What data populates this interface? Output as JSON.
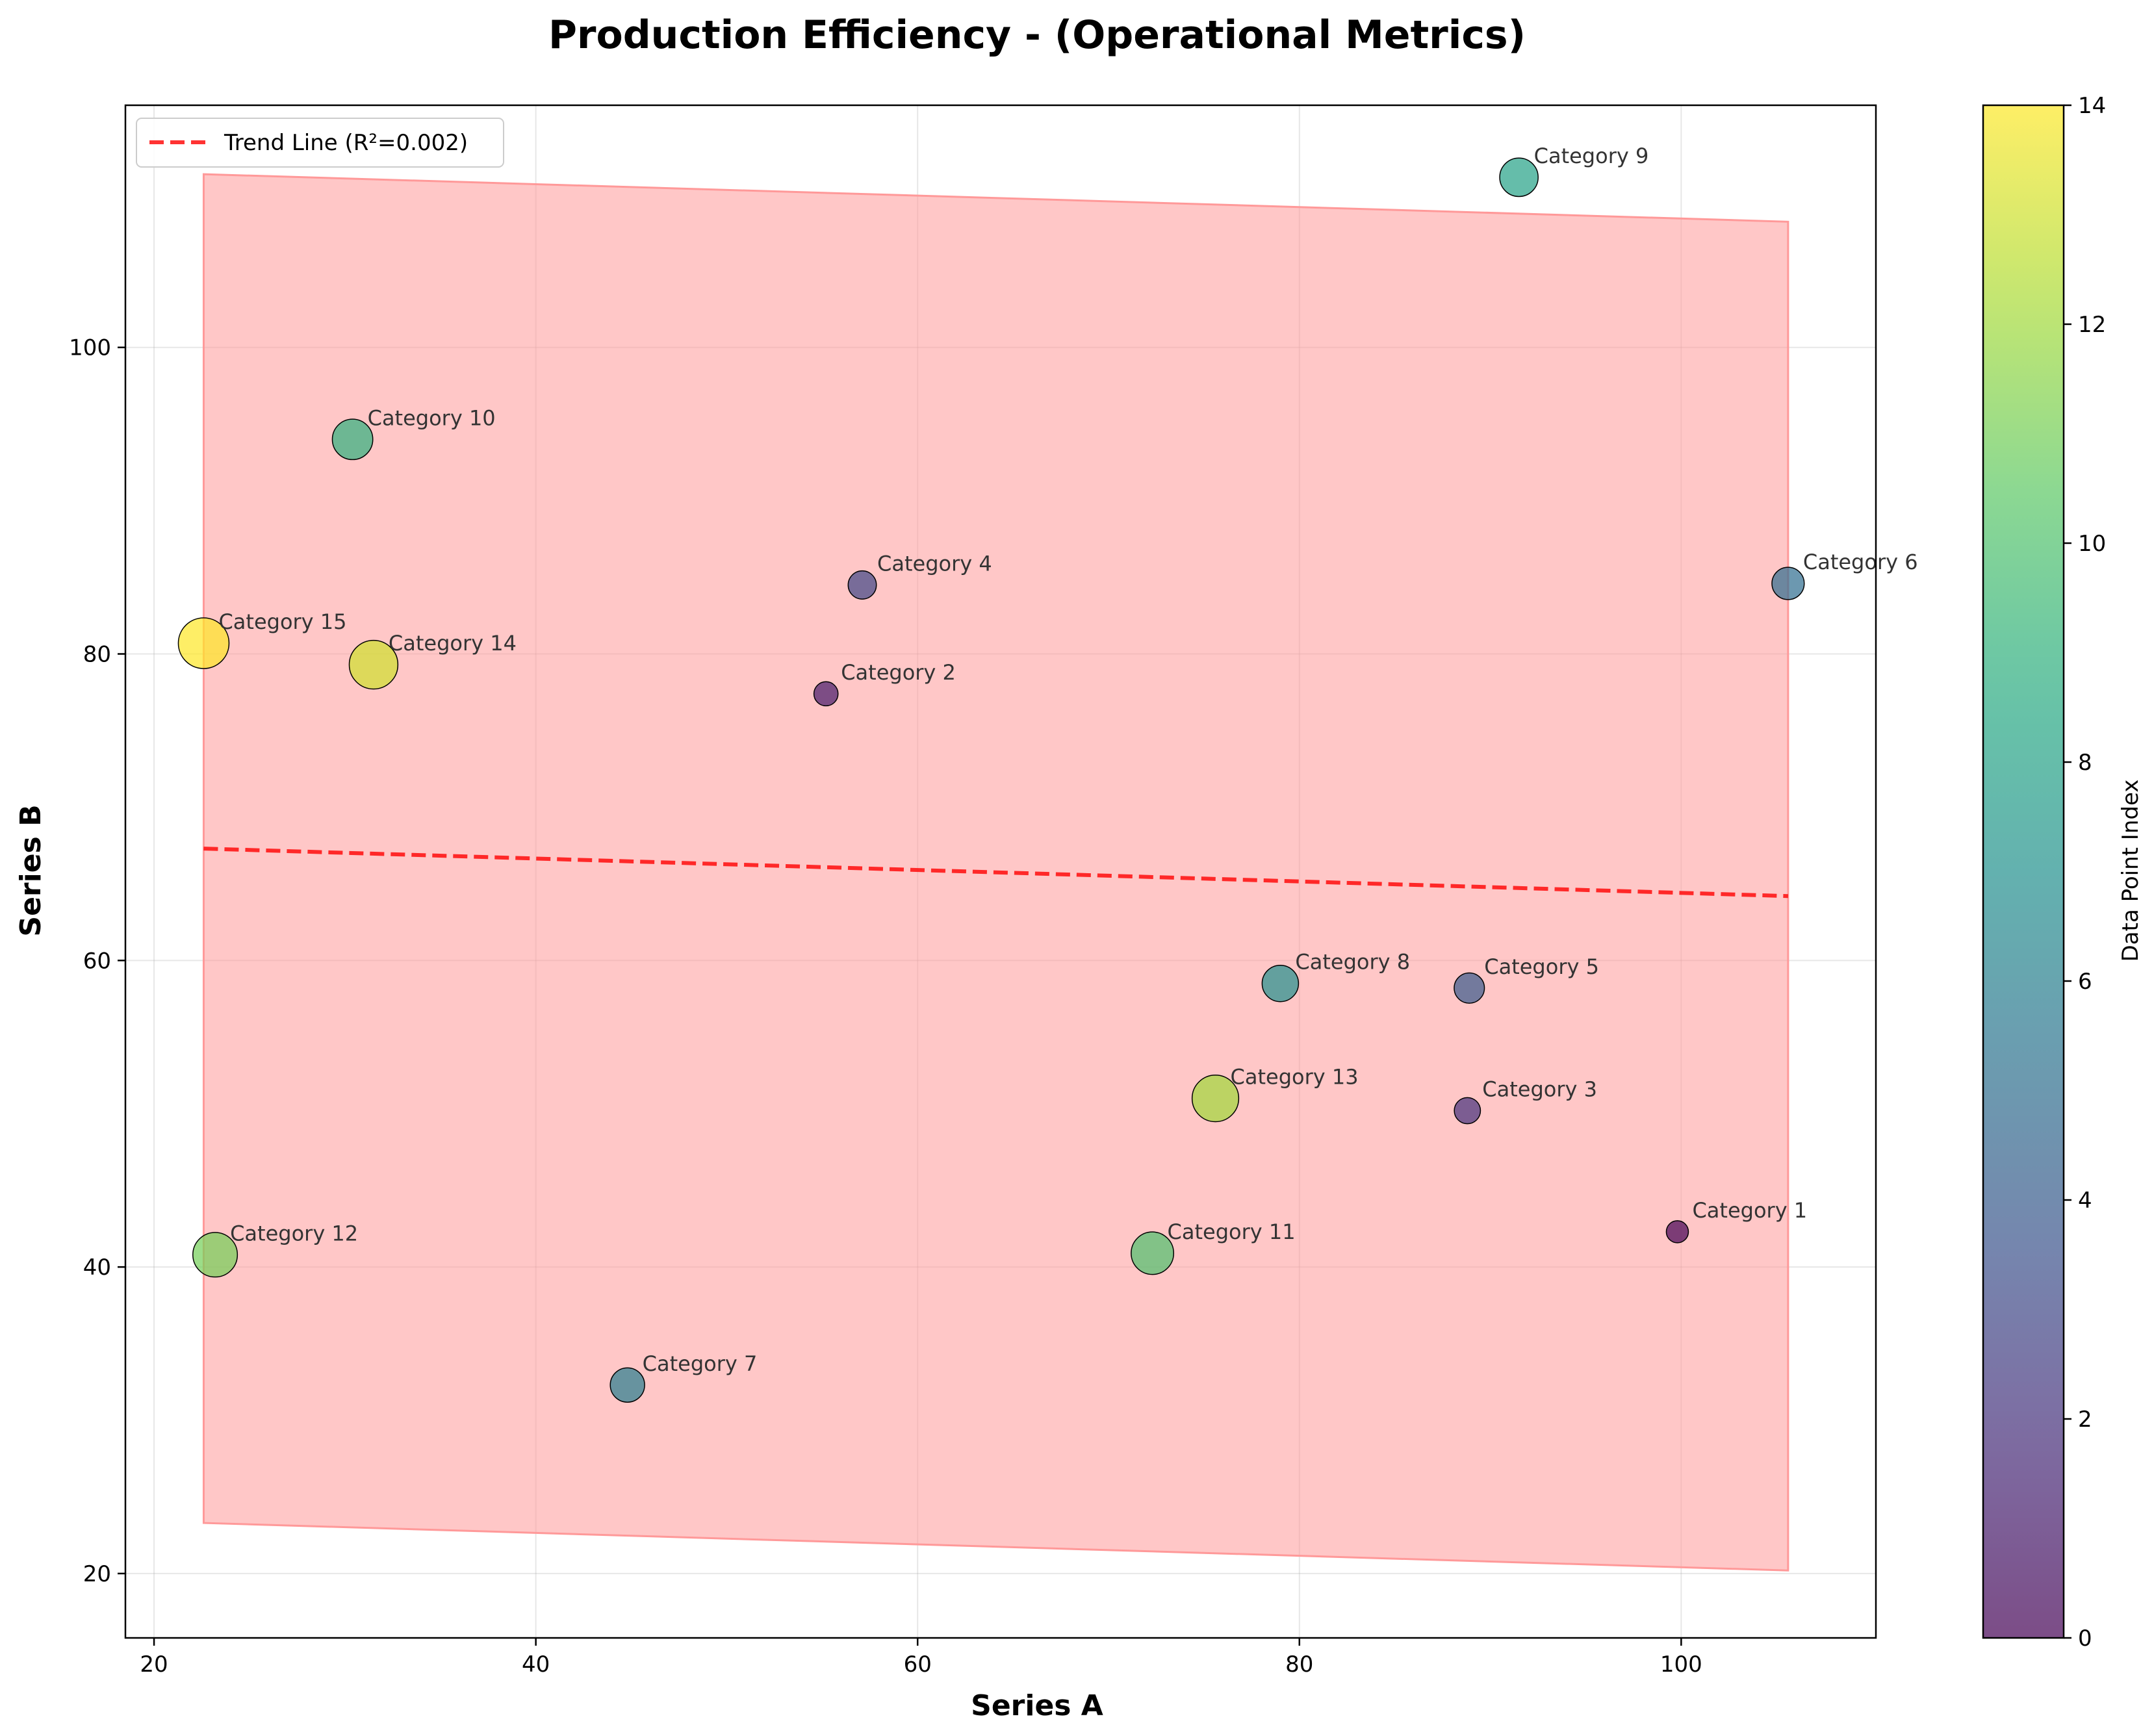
{
  "chart_data": {
    "type": "scatter",
    "title": "Production Efficiency - (Operational Metrics)",
    "xlabel": "Series A",
    "ylabel": "Series B",
    "xlim": [
      18.5,
      110.2
    ],
    "ylim": [
      15.8,
      115.8
    ],
    "x_ticks": [
      20,
      40,
      60,
      80,
      100
    ],
    "y_ticks": [
      20,
      40,
      60,
      80,
      100
    ],
    "grid": true,
    "legend": {
      "position": "top-left",
      "entries": [
        "Trend Line (R²=0.002)"
      ]
    },
    "trend_line": {
      "label": "Trend Line (R²=0.002)",
      "color": "#ff0000",
      "x_range": [
        22.6,
        105.6
      ],
      "y_start": 67.3,
      "y_end": 64.2
    },
    "confidence_band": {
      "color": "#ff9999",
      "x_range": [
        22.6,
        105.6
      ],
      "upper": [
        111.3,
        108.2
      ],
      "lower": [
        23.3,
        20.2
      ]
    },
    "colorbar": {
      "label": "Data Point Index",
      "min": 0,
      "max": 14,
      "ticks": [
        0,
        2,
        4,
        6,
        8,
        10,
        12,
        14
      ],
      "colormap": "viridis"
    },
    "points": [
      {
        "label": "Category 1",
        "x": 99.8,
        "y": 42.3,
        "index": 0
      },
      {
        "label": "Category 2",
        "x": 55.2,
        "y": 77.4,
        "index": 1
      },
      {
        "label": "Category 3",
        "x": 88.8,
        "y": 50.2,
        "index": 2
      },
      {
        "label": "Category 4",
        "x": 57.1,
        "y": 84.5,
        "index": 3
      },
      {
        "label": "Category 5",
        "x": 88.9,
        "y": 58.2,
        "index": 4
      },
      {
        "label": "Category 6",
        "x": 105.6,
        "y": 84.6,
        "index": 5
      },
      {
        "label": "Category 7",
        "x": 44.8,
        "y": 32.3,
        "index": 6
      },
      {
        "label": "Category 8",
        "x": 79.0,
        "y": 58.5,
        "index": 7
      },
      {
        "label": "Category 9",
        "x": 91.5,
        "y": 111.1,
        "index": 8
      },
      {
        "label": "Category 10",
        "x": 30.4,
        "y": 94.0,
        "index": 9
      },
      {
        "label": "Category 11",
        "x": 72.3,
        "y": 40.9,
        "index": 10
      },
      {
        "label": "Category 12",
        "x": 23.2,
        "y": 40.8,
        "index": 11
      },
      {
        "label": "Category 13",
        "x": 75.6,
        "y": 51.0,
        "index": 12
      },
      {
        "label": "Category 14",
        "x": 31.5,
        "y": 79.3,
        "index": 13
      },
      {
        "label": "Category 15",
        "x": 22.6,
        "y": 80.7,
        "index": 14
      }
    ]
  }
}
